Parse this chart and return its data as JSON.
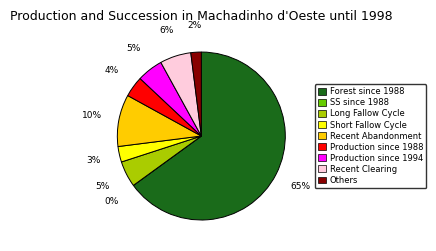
{
  "title": "Production and Succession in Machadinho d'Oeste until 1998",
  "background_color": "#ffffff",
  "title_fontsize": 9,
  "ordered_values": [
    65,
    0,
    5,
    3,
    10,
    4,
    5,
    6,
    2
  ],
  "ordered_colors": [
    "#1a6b1a",
    "#66cc00",
    "#aacc00",
    "#ffff00",
    "#ffcc00",
    "#ff0000",
    "#ff00ff",
    "#ffccdd",
    "#880000"
  ],
  "ordered_labels": [
    "Forest since 1988",
    "SS since 1988",
    "Long Fallow Cycle",
    "Short Fallow Cycle",
    "Recent Abandonment",
    "Production since 1988",
    "Production since 1994",
    "Recent Clearing",
    "Others"
  ],
  "ordered_pcts": [
    "65%",
    "0%",
    "5%",
    "3%",
    "10%",
    "4%",
    "5%",
    "6%",
    "2%"
  ]
}
